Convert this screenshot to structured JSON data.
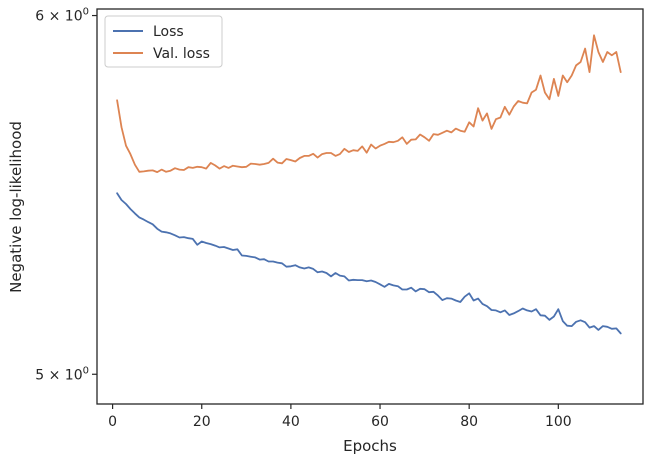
{
  "chart_data": {
    "type": "line",
    "xlabel": "Epochs",
    "ylabel": "Negative log-likelihood",
    "y_scale": "log",
    "xlim": [
      -3.5,
      119
    ],
    "ylim": [
      4.925,
      6.02
    ],
    "x_ticks": [
      0,
      20,
      40,
      60,
      80,
      100
    ],
    "y_ticks": [
      {
        "value": 5,
        "label_base": "5 × 10",
        "label_exp": "0"
      },
      {
        "value": 6,
        "label_base": "6 × 10",
        "label_exp": "0"
      }
    ],
    "grid": false,
    "legend_position": "upper-left",
    "x": [
      1,
      2,
      3,
      4,
      5,
      6,
      7,
      8,
      9,
      10,
      11,
      12,
      13,
      14,
      15,
      16,
      17,
      18,
      19,
      20,
      21,
      22,
      23,
      24,
      25,
      26,
      27,
      28,
      29,
      30,
      31,
      32,
      33,
      34,
      35,
      36,
      37,
      38,
      39,
      40,
      41,
      42,
      43,
      44,
      45,
      46,
      47,
      48,
      49,
      50,
      51,
      52,
      53,
      54,
      55,
      56,
      57,
      58,
      59,
      60,
      61,
      62,
      63,
      64,
      65,
      66,
      67,
      68,
      69,
      70,
      71,
      72,
      73,
      74,
      75,
      76,
      77,
      78,
      79,
      80,
      81,
      82,
      83,
      84,
      85,
      86,
      87,
      88,
      89,
      90,
      91,
      92,
      93,
      94,
      95,
      96,
      97,
      98,
      99,
      100,
      101,
      102,
      103,
      104,
      105,
      106,
      107,
      108,
      109,
      110,
      111,
      112,
      113,
      114
    ],
    "series": [
      {
        "name": "Loss",
        "color": "#4c72b0",
        "values": [
          5.482,
          5.463,
          5.452,
          5.438,
          5.426,
          5.415,
          5.409,
          5.402,
          5.396,
          5.384,
          5.376,
          5.374,
          5.371,
          5.366,
          5.36,
          5.361,
          5.358,
          5.356,
          5.34,
          5.349,
          5.345,
          5.342,
          5.338,
          5.333,
          5.334,
          5.33,
          5.326,
          5.328,
          5.311,
          5.31,
          5.308,
          5.306,
          5.3,
          5.301,
          5.295,
          5.295,
          5.292,
          5.29,
          5.281,
          5.282,
          5.285,
          5.279,
          5.276,
          5.279,
          5.275,
          5.266,
          5.268,
          5.264,
          5.255,
          5.264,
          5.257,
          5.255,
          5.244,
          5.246,
          5.245,
          5.245,
          5.242,
          5.244,
          5.24,
          5.234,
          5.227,
          5.235,
          5.231,
          5.229,
          5.22,
          5.22,
          5.225,
          5.215,
          5.222,
          5.221,
          5.213,
          5.214,
          5.204,
          5.192,
          5.197,
          5.196,
          5.191,
          5.187,
          5.201,
          5.21,
          5.191,
          5.196,
          5.182,
          5.176,
          5.166,
          5.165,
          5.16,
          5.165,
          5.153,
          5.157,
          5.163,
          5.17,
          5.165,
          5.162,
          5.168,
          5.152,
          5.151,
          5.14,
          5.149,
          5.168,
          5.137,
          5.125,
          5.124,
          5.135,
          5.139,
          5.134,
          5.12,
          5.124,
          5.114,
          5.124,
          5.122,
          5.117,
          5.118,
          5.105
        ]
      },
      {
        "name": "Val. loss",
        "color": "#dd8452",
        "values": [
          5.747,
          5.669,
          5.616,
          5.592,
          5.562,
          5.542,
          5.543,
          5.545,
          5.546,
          5.541,
          5.548,
          5.542,
          5.545,
          5.552,
          5.548,
          5.547,
          5.555,
          5.553,
          5.556,
          5.555,
          5.551,
          5.567,
          5.56,
          5.551,
          5.558,
          5.553,
          5.559,
          5.557,
          5.555,
          5.556,
          5.565,
          5.564,
          5.562,
          5.564,
          5.567,
          5.579,
          5.568,
          5.566,
          5.578,
          5.575,
          5.571,
          5.581,
          5.587,
          5.587,
          5.593,
          5.582,
          5.592,
          5.595,
          5.595,
          5.587,
          5.592,
          5.607,
          5.598,
          5.603,
          5.601,
          5.614,
          5.596,
          5.619,
          5.608,
          5.616,
          5.621,
          5.627,
          5.626,
          5.63,
          5.64,
          5.621,
          5.633,
          5.634,
          5.648,
          5.64,
          5.63,
          5.649,
          5.647,
          5.653,
          5.659,
          5.654,
          5.665,
          5.659,
          5.656,
          5.683,
          5.671,
          5.724,
          5.688,
          5.709,
          5.664,
          5.692,
          5.697,
          5.728,
          5.705,
          5.729,
          5.745,
          5.74,
          5.738,
          5.77,
          5.778,
          5.82,
          5.77,
          5.75,
          5.81,
          5.76,
          5.82,
          5.8,
          5.82,
          5.85,
          5.86,
          5.9,
          5.83,
          5.94,
          5.89,
          5.86,
          5.89,
          5.88,
          5.89,
          5.83
        ]
      }
    ]
  }
}
